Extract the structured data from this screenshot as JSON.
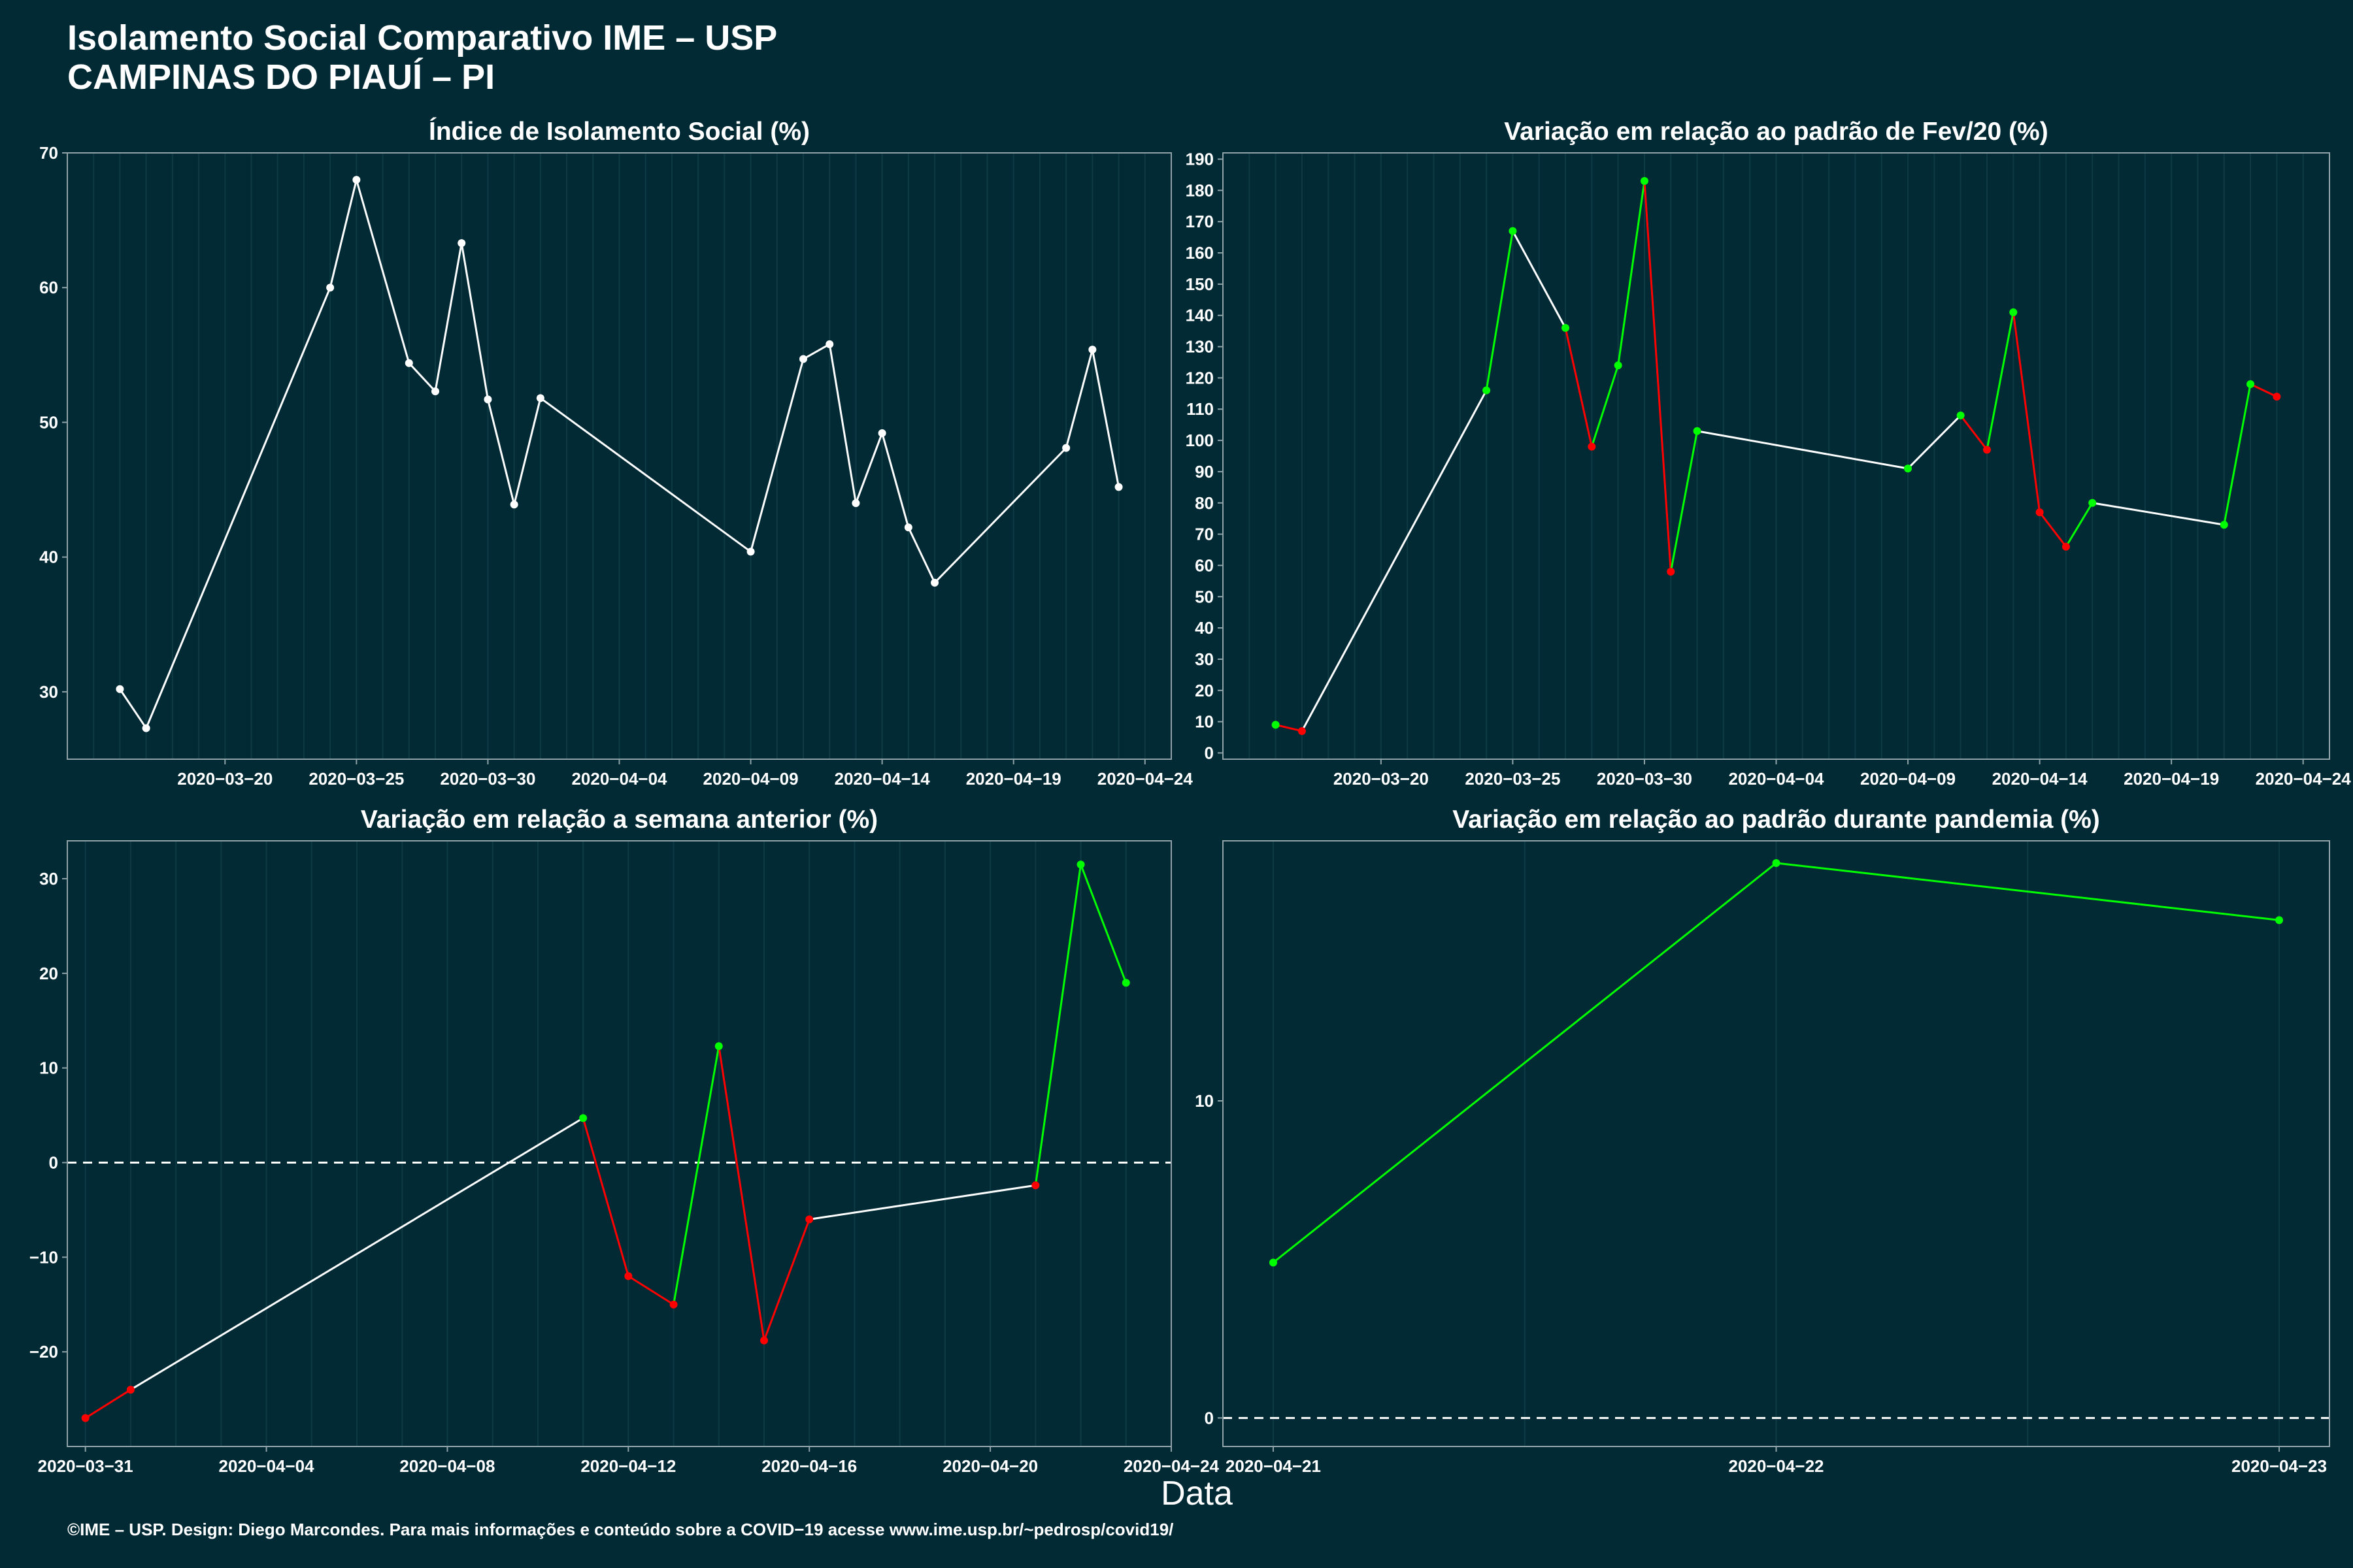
{
  "header": {
    "title_line1": "Isolamento Social Comparativo IME – USP",
    "title_line2": "CAMPINAS DO PIAUÍ – PI"
  },
  "xaxis_title": "Data",
  "caption": "©IME – USP. Design: Diego Marcondes. Para mais informações e conteúdo sobre a COVID−19 acesse www.ime.usp.br/~pedrosp/covid19/",
  "colors": {
    "background": "#012a35",
    "grid": "#0e3a44",
    "axis": "#8fa3a8",
    "neutral_line": "#ffffff",
    "up": "#00ff00",
    "down": "#ff0000"
  },
  "chart_data": [
    {
      "type": "line",
      "title": "Índice de Isolamento Social (%)",
      "color_mode": "white",
      "x": [
        "2020-03-16",
        "2020-03-17",
        "2020-03-24",
        "2020-03-25",
        "2020-03-27",
        "2020-03-28",
        "2020-03-29",
        "2020-03-30",
        "2020-03-31",
        "2020-04-01",
        "2020-04-09",
        "2020-04-11",
        "2020-04-12",
        "2020-04-13",
        "2020-04-14",
        "2020-04-15",
        "2020-04-16",
        "2020-04-21",
        "2020-04-22",
        "2020-04-23"
      ],
      "y": [
        30.2,
        27.3,
        60.0,
        68.0,
        54.4,
        52.3,
        63.3,
        51.7,
        43.9,
        51.8,
        40.4,
        54.7,
        55.8,
        44.0,
        49.2,
        42.2,
        38.1,
        48.1,
        55.4,
        45.2
      ],
      "xlim": [
        "2020-03-14",
        "2020-04-25"
      ],
      "ylim": [
        25,
        70
      ],
      "x_ticks": [
        "2020-03-20",
        "2020-03-25",
        "2020-03-30",
        "2020-04-04",
        "2020-04-09",
        "2020-04-14",
        "2020-04-19",
        "2020-04-24"
      ],
      "y_ticks": [
        30,
        40,
        50,
        60,
        70
      ],
      "grid": true
    },
    {
      "type": "line",
      "title": "Variação em relação ao padrão de Fev/20 (%)",
      "color_mode": "consecutive",
      "x": [
        "2020-03-16",
        "2020-03-17",
        "2020-03-24",
        "2020-03-25",
        "2020-03-27",
        "2020-03-28",
        "2020-03-29",
        "2020-03-30",
        "2020-03-31",
        "2020-04-01",
        "2020-04-09",
        "2020-04-11",
        "2020-04-12",
        "2020-04-13",
        "2020-04-14",
        "2020-04-15",
        "2020-04-16",
        "2020-04-21",
        "2020-04-22",
        "2020-04-23"
      ],
      "y": [
        9,
        7,
        116,
        167,
        136,
        98,
        124,
        183,
        58,
        103,
        91,
        108,
        97,
        141,
        77,
        66,
        80,
        73,
        118,
        114
      ],
      "xlim": [
        "2020-03-14",
        "2020-04-25"
      ],
      "ylim": [
        -2,
        192
      ],
      "x_ticks": [
        "2020-03-20",
        "2020-03-25",
        "2020-03-30",
        "2020-04-04",
        "2020-04-09",
        "2020-04-14",
        "2020-04-19",
        "2020-04-24"
      ],
      "y_ticks": [
        0,
        10,
        20,
        30,
        40,
        50,
        60,
        70,
        80,
        90,
        100,
        110,
        120,
        130,
        140,
        150,
        160,
        170,
        180,
        190
      ],
      "grid": true
    },
    {
      "type": "line",
      "title": "Variação em relação a semana anterior (%)",
      "color_mode": "sign",
      "reference_line": 0,
      "x": [
        "2020-03-31",
        "2020-04-01",
        "2020-04-11",
        "2020-04-12",
        "2020-04-13",
        "2020-04-14",
        "2020-04-15",
        "2020-04-16",
        "2020-04-21",
        "2020-04-22",
        "2020-04-23"
      ],
      "y": [
        -27.0,
        -24.0,
        4.7,
        -12.0,
        -15.0,
        12.3,
        -18.8,
        -6.0,
        -2.4,
        31.5,
        19.0
      ],
      "xlim": [
        "2020-03-30.6",
        "2020-04-24"
      ],
      "ylim": [
        -30,
        34
      ],
      "x_ticks": [
        "2020-03-31",
        "2020-04-04",
        "2020-04-08",
        "2020-04-12",
        "2020-04-16",
        "2020-04-20",
        "2020-04-24"
      ],
      "y_ticks": [
        -20,
        -10,
        0,
        10,
        20,
        30
      ],
      "grid": true
    },
    {
      "type": "line",
      "title": "Variação em relação ao padrão durante pandemia (%)",
      "color_mode": "sign",
      "reference_line": 0,
      "x": [
        "2020-04-21",
        "2020-04-22",
        "2020-04-23"
      ],
      "y": [
        4.9,
        17.5,
        15.7
      ],
      "xlim": [
        "2020-04-20.9",
        "2020-04-23.1"
      ],
      "ylim": [
        -0.9,
        18.2
      ],
      "x_ticks": [
        "2020-04-21",
        "2020-04-22",
        "2020-04-23"
      ],
      "y_ticks": [
        0,
        10
      ],
      "grid": true
    }
  ]
}
